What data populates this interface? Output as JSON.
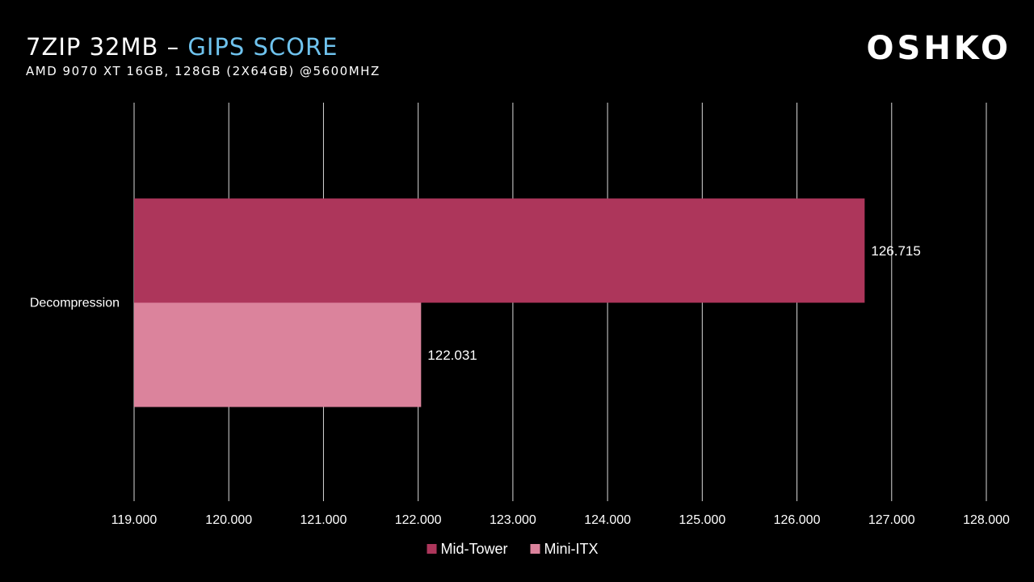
{
  "title": {
    "main": "7ZIP 32MB – ",
    "accent": "GIPS SCORE"
  },
  "subtitle": "AMD 9070 XT 16GB, 128GB (2x64GB) @5600MHZ",
  "logo": "OSHKO",
  "colors": {
    "background": "#000000",
    "title_accent": "#6fc3ee",
    "grid": "#d9d9d9",
    "text": "#ffffff"
  },
  "chart_data": {
    "type": "bar",
    "orientation": "horizontal",
    "categories": [
      "Decompression"
    ],
    "series": [
      {
        "name": "Mid-Tower",
        "color": "#ad365b",
        "values": [
          126.715
        ]
      },
      {
        "name": "Mini-ITX",
        "color": "#db839c",
        "values": [
          122.031
        ]
      }
    ],
    "value_labels": [
      [
        "126.715"
      ],
      [
        "122.031"
      ]
    ],
    "xlim": [
      119,
      128
    ],
    "xticks": [
      "119.000",
      "120.000",
      "121.000",
      "122.000",
      "123.000",
      "124.000",
      "125.000",
      "126.000",
      "127.000",
      "128.000"
    ],
    "grid": "vertical",
    "legend_position": "bottom"
  }
}
